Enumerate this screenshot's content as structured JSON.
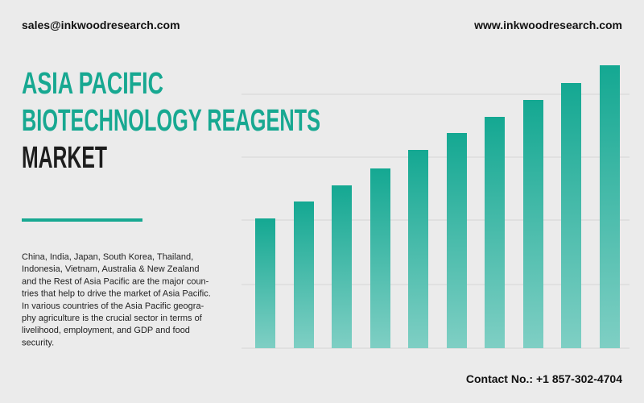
{
  "header": {
    "email": "sales@inkwoodresearch.com",
    "website": "www.inkwoodresearch.com"
  },
  "title": {
    "line1": "ASIA PACIFIC",
    "line2": "BIOTECHNOLOGY REAGENTS",
    "line3": "MARKET"
  },
  "description": {
    "lines": [
      "China, India, Japan, South Korea, Thailand,",
      "Indonesia, Vietnam, Australia & New Zealand",
      "and the Rest of Asia Pacific are the major coun-",
      "tries that help to drive the market of Asia Pacific.",
      "In various countries of the Asia Pacific geogra-",
      "phy agriculture is the crucial sector in terms of",
      "livelihood, employment, and GDP and food",
      "security."
    ]
  },
  "footer": {
    "contact": "Contact No.: +1 857-302-4704"
  }
}
